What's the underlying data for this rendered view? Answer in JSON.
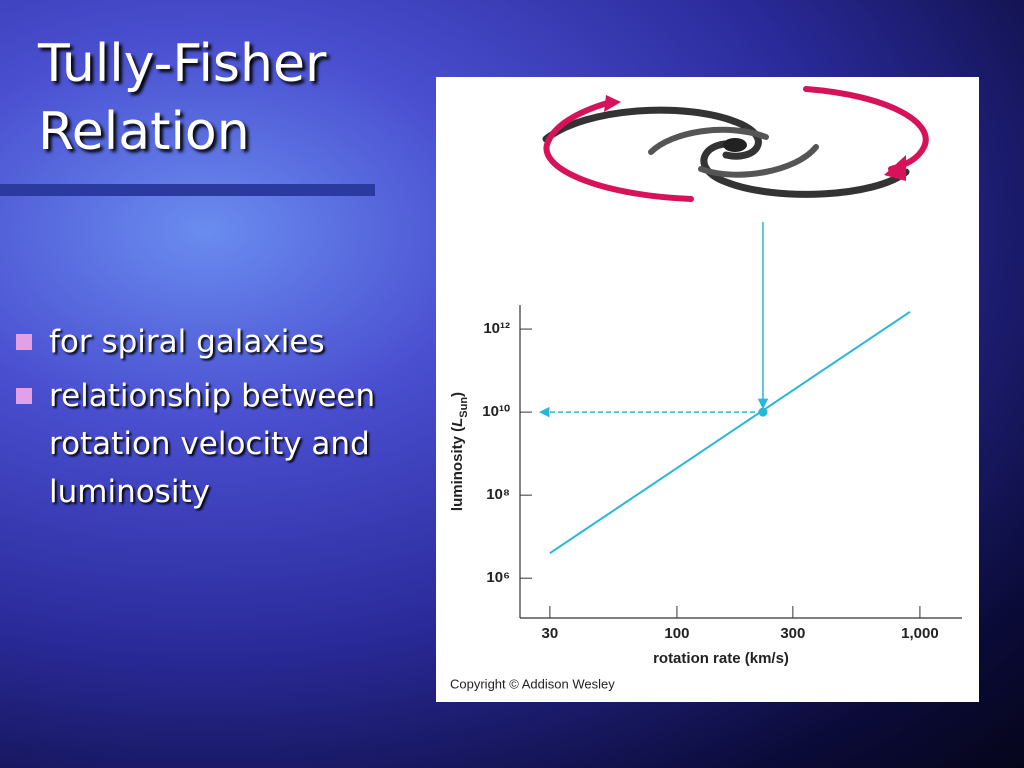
{
  "slide": {
    "title": "Tully-Fisher Relation",
    "bullets": [
      "for spiral galaxies",
      "relationship between rotation velocity and luminosity"
    ]
  },
  "chart_data": {
    "type": "line",
    "xlabel": "rotation rate (km/s)",
    "ylabel_parts": [
      "luminosity (",
      "L",
      "Sun",
      ")"
    ],
    "xscale": "log",
    "yscale": "log",
    "xlim": [
      22.6,
      1490
    ],
    "ylim": [
      110000,
      3800000000000
    ],
    "xticks": [
      30,
      100,
      300,
      {
        "value": 1000,
        "label": "1,000"
      }
    ],
    "yticks": [
      {
        "value": 1000000,
        "label": "10⁶"
      },
      {
        "value": 100000000,
        "label": "10⁸"
      },
      {
        "value": 10000000000,
        "label": "10¹⁰"
      },
      {
        "value": 1000000000000,
        "label": "10¹²"
      }
    ],
    "series": [
      {
        "color": "#29b6d8",
        "x": [
          30,
          910
        ],
        "values": [
          4000000,
          2600000000000
        ]
      }
    ],
    "highlight": {
      "x": 226,
      "y": 10000000000
    }
  },
  "copyright": "Copyright © Addison Wesley"
}
